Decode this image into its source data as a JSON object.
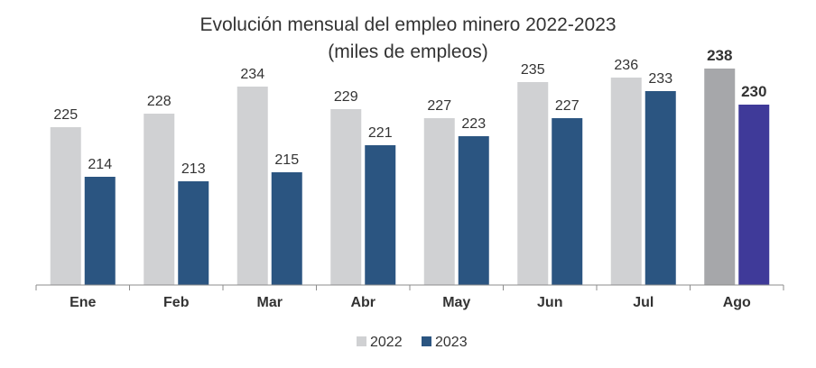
{
  "chart_data": {
    "type": "bar",
    "title": "Evolución mensual del empleo minero 2022-2023",
    "subtitle": "(miles de empleos)",
    "categories": [
      "Ene",
      "Feb",
      "Mar",
      "Abr",
      "May",
      "Jun",
      "Jul",
      "Ago"
    ],
    "series": [
      {
        "name": "2022",
        "values": [
          225,
          228,
          234,
          229,
          227,
          235,
          236,
          238
        ]
      },
      {
        "name": "2023",
        "values": [
          214,
          213,
          215,
          221,
          223,
          227,
          233,
          230
        ]
      }
    ],
    "ylim": [
      190,
      240
    ],
    "grid": false,
    "legend": "bottom-center",
    "colors": {
      "2022": "#d0d1d3",
      "2023": "#2b5581",
      "2022_highlight": "#a6a7aa",
      "2023_highlight": "#3f3a99"
    },
    "highlight_category": "Ago"
  }
}
